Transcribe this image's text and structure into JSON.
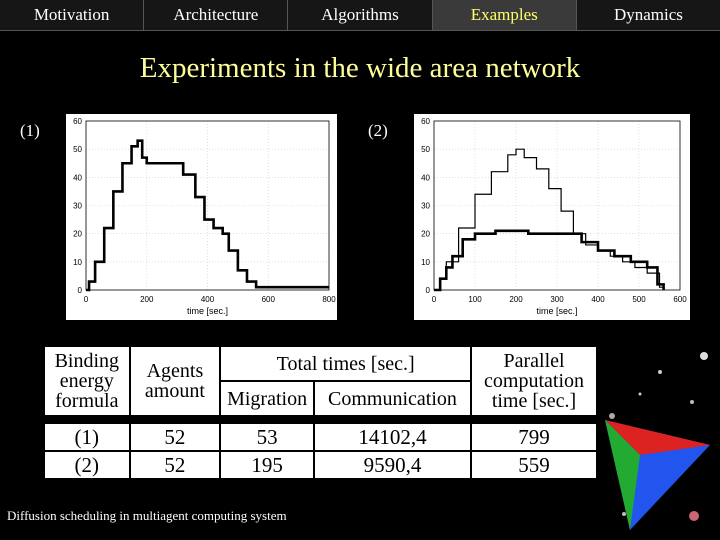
{
  "nav": {
    "items": [
      {
        "label": "Motivation"
      },
      {
        "label": "Architecture"
      },
      {
        "label": "Algorithms"
      },
      {
        "label": "Examples"
      },
      {
        "label": "Dynamics"
      }
    ],
    "active_index": 3
  },
  "slide": {
    "title": "Experiments in the wide area network",
    "footer": "Diffusion scheduling in multiagent computing system"
  },
  "plots": [
    {
      "label": "(1)"
    },
    {
      "label": "(2)"
    }
  ],
  "chart_data": [
    {
      "type": "line",
      "xlabel": "time [sec.]",
      "ylabel": "",
      "xlim": [
        0,
        800
      ],
      "ylim": [
        0,
        60
      ],
      "xticks": [
        "0",
        "200",
        "400",
        "600",
        "800"
      ],
      "yticks": [
        "0",
        "10",
        "20",
        "30",
        "40",
        "50",
        "60"
      ],
      "grid": true,
      "series": [
        {
          "x": [
            0,
            10,
            30,
            60,
            90,
            120,
            150,
            170,
            185,
            200,
            230,
            280,
            320,
            360,
            390,
            420,
            450,
            470,
            500,
            530,
            560,
            600,
            640,
            680,
            720,
            780,
            800
          ],
          "y": [
            0,
            3,
            10,
            22,
            35,
            45,
            51,
            53,
            47,
            45,
            45,
            45,
            41,
            33,
            25,
            22,
            20,
            14,
            7,
            3,
            1,
            1,
            1,
            1,
            1,
            1,
            1
          ]
        }
      ]
    },
    {
      "type": "line",
      "xlabel": "time [sec.]",
      "ylabel": "",
      "xlim": [
        0,
        600
      ],
      "ylim": [
        0,
        60
      ],
      "xticks": [
        "0",
        "100",
        "200",
        "300",
        "400",
        "500",
        "600"
      ],
      "yticks": [
        "0",
        "10",
        "20",
        "30",
        "40",
        "50",
        "60"
      ],
      "grid": true,
      "series": [
        {
          "x": [
            0,
            15,
            30,
            60,
            100,
            140,
            180,
            200,
            220,
            250,
            280,
            310,
            340,
            370,
            400,
            430,
            460,
            490,
            520,
            550,
            560
          ],
          "y": [
            0,
            4,
            10,
            22,
            34,
            42,
            48,
            50,
            47,
            43,
            36,
            28,
            20,
            16,
            14,
            12,
            10,
            8,
            6,
            1,
            0
          ]
        },
        {
          "x": [
            0,
            15,
            30,
            45,
            70,
            100,
            150,
            200,
            230,
            270,
            300,
            340,
            360,
            400,
            440,
            480,
            520,
            545,
            560
          ],
          "y": [
            0,
            4,
            8,
            12,
            18,
            20,
            21,
            21,
            20,
            20,
            20,
            20,
            17,
            14,
            12,
            10,
            8,
            2,
            0
          ]
        }
      ]
    }
  ],
  "table": {
    "head": {
      "binding": "Binding energy formula",
      "agents": "Agents amount",
      "total": "Total times [sec.]",
      "migration": "Migration",
      "communication": "Communication",
      "parallel": "Parallel computation time [sec.]"
    },
    "rows": [
      {
        "formula": "(1)",
        "agents": "52",
        "migration": "53",
        "communication": "14102,4",
        "parallel": "799"
      },
      {
        "formula": "(2)",
        "agents": "52",
        "migration": "195",
        "communication": "9590,4",
        "parallel": "559"
      }
    ]
  }
}
